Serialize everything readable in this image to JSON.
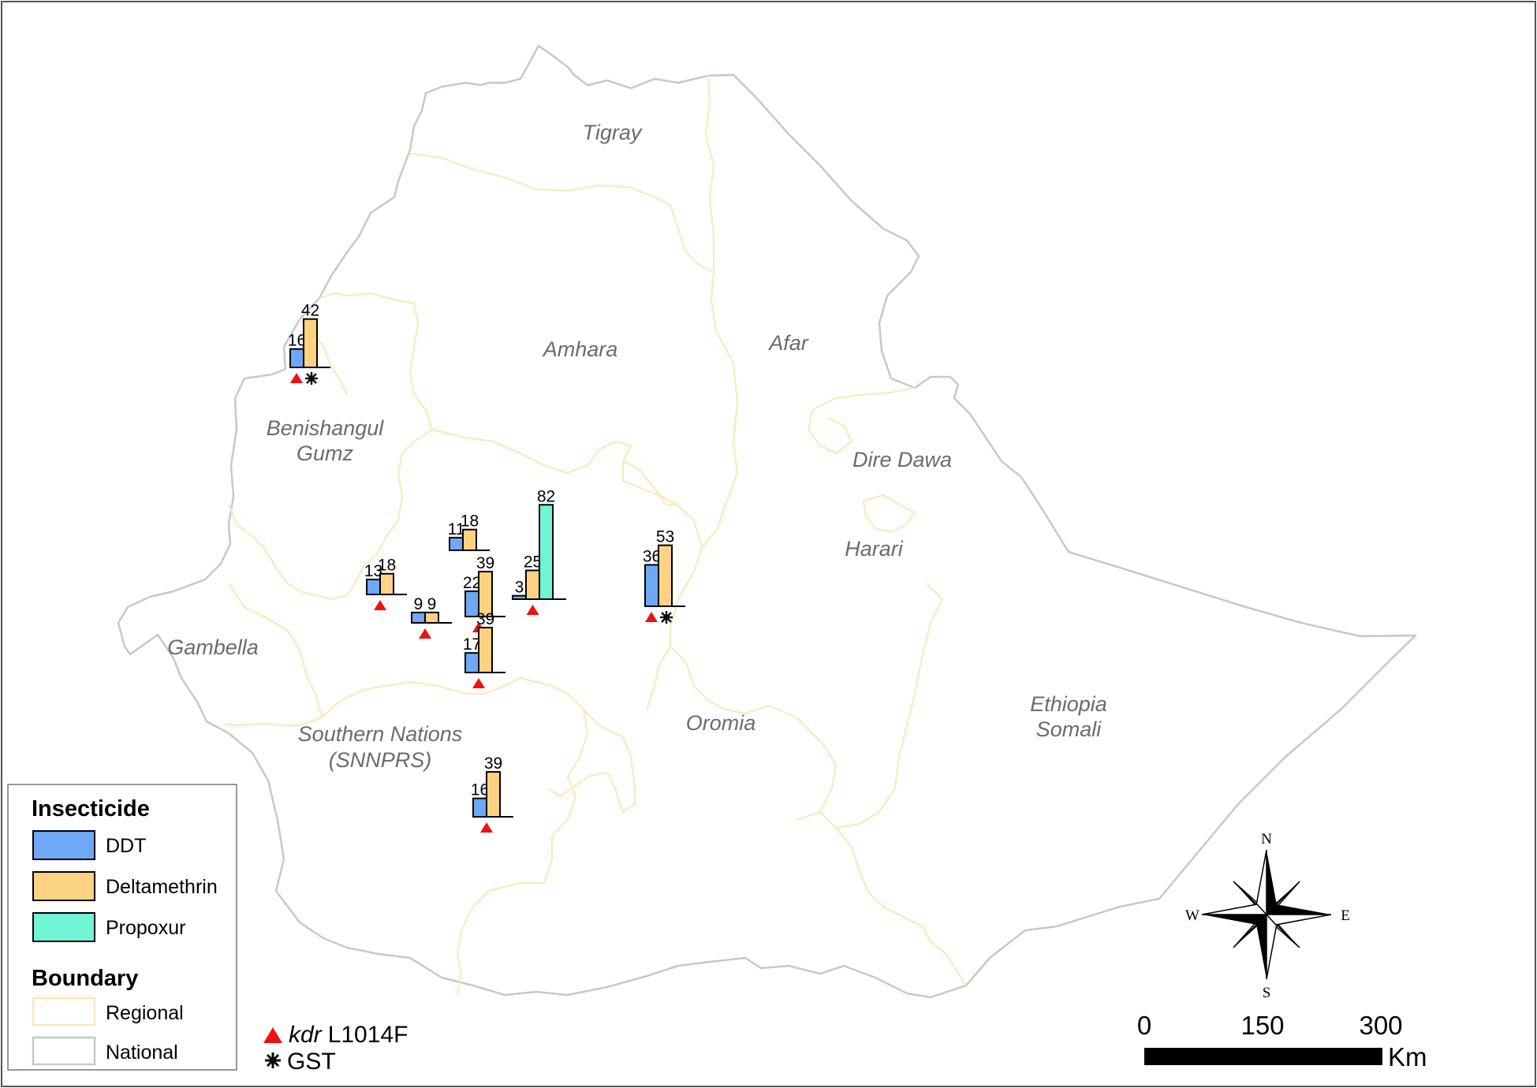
{
  "regions": [
    {
      "id": "tigray",
      "name": "Tigray"
    },
    {
      "id": "amhara",
      "name": "Amhara"
    },
    {
      "id": "afar",
      "name": "Afar"
    },
    {
      "id": "benishangul",
      "name": "Benishangul Gumz",
      "lines": [
        "Benishangul",
        "Gumz"
      ]
    },
    {
      "id": "dire-dawa",
      "name": "Dire Dawa"
    },
    {
      "id": "harari",
      "name": "Harari"
    },
    {
      "id": "gambella",
      "name": "Gambella"
    },
    {
      "id": "oromia",
      "name": "Oromia"
    },
    {
      "id": "snnprs",
      "name": "Southern Nations (SNNPRS)",
      "lines": [
        "Southern Nations",
        "(SNNPRS)"
      ]
    },
    {
      "id": "somali",
      "name": "Ethiopia Somali",
      "lines": [
        "Ethiopia",
        "Somali"
      ]
    }
  ],
  "sites": [
    {
      "id": "site-1",
      "values": {
        "DDT": 16,
        "Deltamethrin": 42
      },
      "kdr": true,
      "gst": true
    },
    {
      "id": "site-2",
      "values": {
        "DDT": 11,
        "Deltamethrin": 18
      },
      "kdr": false,
      "gst": false
    },
    {
      "id": "site-3",
      "values": {
        "DDT": 13,
        "Deltamethrin": 18
      },
      "kdr": true,
      "gst": false
    },
    {
      "id": "site-4",
      "values": {
        "DDT": 9,
        "Deltamethrin": 9
      },
      "kdr": true,
      "gst": false
    },
    {
      "id": "site-5",
      "values": {
        "DDT": 22,
        "Deltamethrin": 39
      },
      "kdr": true,
      "gst": false
    },
    {
      "id": "site-6",
      "values": {
        "DDT": 3,
        "Deltamethrin": 25,
        "Propoxur": 82
      },
      "kdr": true,
      "gst": false
    },
    {
      "id": "site-7",
      "values": {
        "DDT": 17,
        "Deltamethrin": 39
      },
      "kdr": true,
      "gst": false
    },
    {
      "id": "site-8",
      "values": {
        "DDT": 36,
        "Deltamethrin": 53
      },
      "kdr": true,
      "gst": true
    },
    {
      "id": "site-9",
      "values": {
        "DDT": 16,
        "Deltamethrin": 39
      },
      "kdr": true,
      "gst": false
    }
  ],
  "legend": {
    "insecticide_title": "Insecticide",
    "insecticides": [
      {
        "name": "DDT",
        "color": "#6fa8f5"
      },
      {
        "name": "Deltamethrin",
        "color": "#fcd283"
      },
      {
        "name": "Propoxur",
        "color": "#6ff5d6"
      }
    ],
    "boundary_title": "Boundary",
    "boundaries": [
      {
        "name": "Regional",
        "color": "#fde8b8"
      },
      {
        "name": "National",
        "color": "#c8c8c8"
      }
    ]
  },
  "markers": {
    "kdr_italic": "kdr",
    "kdr_rest": "L1014F",
    "gst": "GST",
    "kdr_color": "#ee1111"
  },
  "scale_bar": {
    "ticks": [
      "0",
      "150",
      "300"
    ],
    "unit": "Km"
  },
  "compass": {
    "n": "N",
    "s": "S",
    "e": "E",
    "w": "W"
  },
  "colors": {
    "national_boundary": "#c8c8c8",
    "regional_boundary": "#fde8b8",
    "frame": "#555555"
  }
}
